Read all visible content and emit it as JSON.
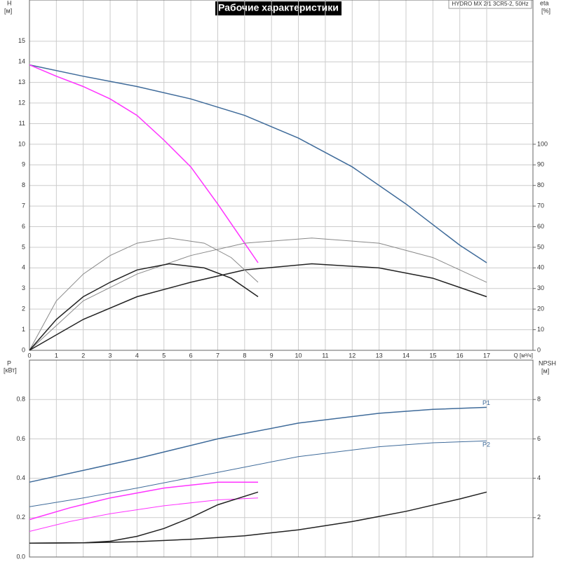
{
  "chart_data": [
    {
      "type": "line",
      "title": "Рабочие характеристики",
      "subtitle": "HYDRO MX 2/1 3CR5-2, 50Hz",
      "ylabel": "H",
      "yunit": "[м]",
      "y2label": "eta",
      "y2unit": "[%]",
      "xlabel": "Q [м³/ч]",
      "xlim": [
        0,
        18.72
      ],
      "xticks": [
        0,
        1,
        2,
        3,
        4,
        5,
        6,
        7,
        8,
        9,
        10,
        11,
        12,
        13,
        14,
        15,
        16,
        17
      ],
      "ylim": [
        0,
        17
      ],
      "yticks": [
        0,
        1,
        2,
        3,
        4,
        5,
        6,
        7,
        8,
        9,
        10,
        11,
        12,
        13,
        14,
        15
      ],
      "y2lim": [
        0,
        170
      ],
      "y2ticks": [
        0,
        10,
        20,
        30,
        40,
        50,
        60,
        70,
        80,
        90,
        100
      ],
      "grid": true,
      "series": [
        {
          "color": "#3f6b9a",
          "width": 1.5,
          "x": [
            0,
            2,
            4,
            6,
            8,
            10,
            12,
            14,
            16,
            17
          ],
          "values": [
            13.85,
            13.3,
            12.8,
            12.2,
            11.4,
            10.3,
            8.9,
            7.1,
            5.1,
            4.25
          ]
        },
        {
          "color": "#ff33ff",
          "width": 1.5,
          "x": [
            0,
            1,
            2,
            3,
            4,
            5,
            6,
            7,
            8,
            8.5
          ],
          "values": [
            13.85,
            13.3,
            12.8,
            12.2,
            11.4,
            10.2,
            8.9,
            7.1,
            5.2,
            4.25
          ]
        },
        {
          "color": "#888888",
          "width": 1,
          "axis": "y2",
          "x": [
            0,
            2,
            4,
            6,
            8,
            10.5,
            13,
            15,
            17
          ],
          "values": [
            0,
            24,
            37,
            46,
            52,
            54.5,
            52,
            45,
            33
          ]
        },
        {
          "color": "#222222",
          "width": 1.5,
          "axis": "y2",
          "x": [
            0,
            2,
            4,
            6,
            8,
            10.5,
            13,
            15,
            17
          ],
          "values": [
            0,
            15,
            26,
            33,
            39,
            42,
            40,
            35,
            26
          ]
        },
        {
          "color": "#888888",
          "width": 1,
          "axis": "y2",
          "x": [
            0,
            1,
            2,
            3,
            4,
            5.2,
            6.5,
            7.5,
            8.5
          ],
          "values": [
            0,
            24,
            37,
            46,
            52,
            54.5,
            52,
            45,
            33
          ]
        },
        {
          "color": "#222222",
          "width": 1.5,
          "axis": "y2",
          "x": [
            0,
            1,
            2,
            3,
            4,
            5.2,
            6.5,
            7.5,
            8.5
          ],
          "values": [
            0,
            15,
            26,
            33,
            39,
            42,
            40,
            35,
            26
          ]
        }
      ]
    },
    {
      "type": "line",
      "ylabel": "P",
      "yunit": "[кВт]",
      "y2label": "NPSH",
      "y2unit": "[м]",
      "xlim": [
        0,
        18.72
      ],
      "ylim": [
        0,
        1
      ],
      "yticks": [
        {
          "value": 0,
          "label": "0.0"
        },
        0.2,
        0.4,
        0.6,
        0.8
      ],
      "y2lim": [
        0,
        10
      ],
      "y2ticks": [
        2,
        4,
        6,
        8
      ],
      "grid": true,
      "series": [
        {
          "label": "P1",
          "color": "#3f6b9a",
          "width": 1.5,
          "x": [
            0,
            2,
            4,
            7,
            10,
            13,
            15,
            17
          ],
          "values": [
            0.38,
            0.44,
            0.5,
            0.6,
            0.68,
            0.73,
            0.75,
            0.76
          ]
        },
        {
          "label": "P2",
          "color": "#3f6b9a",
          "width": 1,
          "x": [
            0,
            2,
            4,
            7,
            10,
            13,
            15,
            17
          ],
          "values": [
            0.255,
            0.3,
            0.35,
            0.43,
            0.51,
            0.56,
            0.58,
            0.59
          ]
        },
        {
          "color": "#ff33ff",
          "width": 1.5,
          "x": [
            0,
            1.5,
            3,
            5,
            7,
            8.5
          ],
          "values": [
            0.19,
            0.25,
            0.3,
            0.35,
            0.38,
            0.38
          ]
        },
        {
          "color": "#ff33ff",
          "width": 1,
          "x": [
            0,
            1.5,
            3,
            5,
            7,
            8.5
          ],
          "values": [
            0.13,
            0.18,
            0.22,
            0.26,
            0.29,
            0.3
          ]
        },
        {
          "color": "#222222",
          "width": 1.5,
          "axis": "y2",
          "x": [
            0,
            2,
            4,
            6,
            8,
            10,
            12,
            14,
            16,
            17
          ],
          "values": [
            0.7,
            0.72,
            0.78,
            0.9,
            1.08,
            1.38,
            1.8,
            2.32,
            2.95,
            3.3
          ]
        },
        {
          "color": "#222222",
          "width": 1.5,
          "axis": "y2",
          "x": [
            0,
            1,
            2,
            3,
            4,
            5,
            6,
            7,
            8.5
          ],
          "values": [
            0.7,
            0.71,
            0.72,
            0.8,
            1.05,
            1.45,
            2.0,
            2.65,
            3.3
          ]
        }
      ]
    }
  ]
}
